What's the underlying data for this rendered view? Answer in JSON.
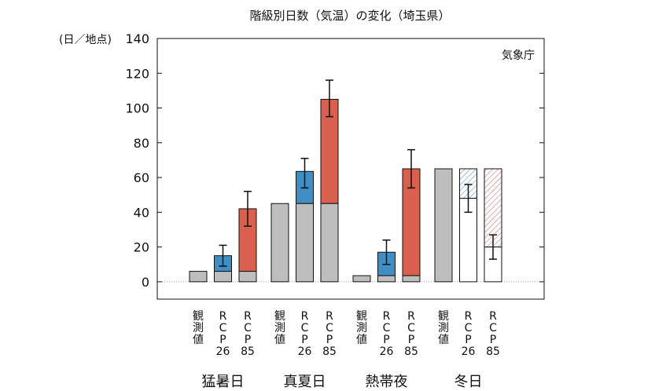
{
  "chart_data": {
    "type": "bar",
    "title": "階級別日数（気温）の変化（埼玉県）",
    "ylabel": "(日／地点)",
    "source": "気象庁",
    "ylim": [
      -10,
      140
    ],
    "yticks": [
      0,
      20,
      40,
      60,
      80,
      100,
      120,
      140
    ],
    "grid": false,
    "groups": [
      {
        "name": "猛暑日",
        "bars": [
          {
            "label": [
              "観",
              "測",
              "値"
            ],
            "kind": "obs",
            "base": 6,
            "value": 6,
            "err": null
          },
          {
            "label": [
              "R",
              "C",
              "P",
              "26"
            ],
            "kind": "rcp26",
            "base": 6,
            "value": 15,
            "err": [
              9,
              21
            ]
          },
          {
            "label": [
              "R",
              "C",
              "P",
              "85"
            ],
            "kind": "rcp85",
            "base": 6,
            "value": 42,
            "err": [
              32,
              52
            ]
          }
        ]
      },
      {
        "name": "真夏日",
        "bars": [
          {
            "label": [
              "観",
              "測",
              "値"
            ],
            "kind": "obs",
            "base": 45,
            "value": 45,
            "err": null
          },
          {
            "label": [
              "R",
              "C",
              "P",
              "26"
            ],
            "kind": "rcp26",
            "base": 45,
            "value": 63.5,
            "err": [
              54,
              71
            ]
          },
          {
            "label": [
              "R",
              "C",
              "P",
              "85"
            ],
            "kind": "rcp85",
            "base": 45,
            "value": 105,
            "err": [
              95,
              116
            ]
          }
        ]
      },
      {
        "name": "熱帯夜",
        "bars": [
          {
            "label": [
              "観",
              "測",
              "値"
            ],
            "kind": "obs",
            "base": 3.5,
            "value": 3.5,
            "err": null
          },
          {
            "label": [
              "R",
              "C",
              "P",
              "26"
            ],
            "kind": "rcp26",
            "base": 3.5,
            "value": 17,
            "err": [
              10,
              24
            ]
          },
          {
            "label": [
              "R",
              "C",
              "P",
              "85"
            ],
            "kind": "rcp85",
            "base": 3.5,
            "value": 65,
            "err": [
              54,
              76
            ]
          }
        ]
      },
      {
        "name": "冬日",
        "bars": [
          {
            "label": [
              "観",
              "測",
              "値"
            ],
            "kind": "obs",
            "base": 65,
            "value": 65,
            "err": null
          },
          {
            "label": [
              "R",
              "C",
              "P",
              "26"
            ],
            "kind": "rcp26-dec",
            "base": 65,
            "value": 48,
            "err": [
              40,
              56
            ]
          },
          {
            "label": [
              "R",
              "C",
              "P",
              "85"
            ],
            "kind": "rcp85-dec",
            "base": 65,
            "value": 20,
            "err": [
              13,
              27
            ]
          }
        ]
      }
    ]
  },
  "colors": {
    "observed": "#bebebe",
    "rcp26": "#3f8fc5",
    "rcp85": "#d9604e"
  }
}
